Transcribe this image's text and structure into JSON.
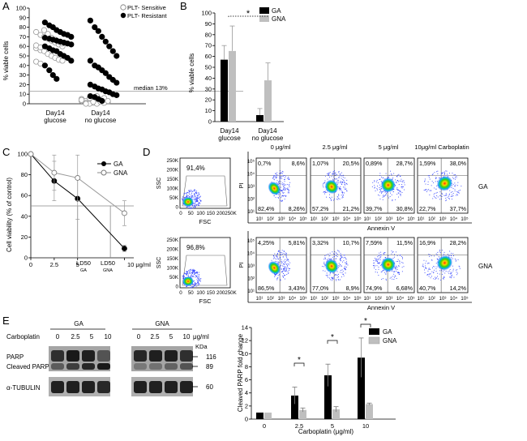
{
  "figure": {
    "labels": {
      "A": "A",
      "B": "B",
      "C": "C",
      "D": "D",
      "E": "E"
    }
  },
  "panelA": {
    "ylabel": "% viable cells",
    "yticks": [
      "0",
      "10",
      "20",
      "30",
      "40",
      "50",
      "60",
      "70",
      "80",
      "90",
      "100"
    ],
    "xcats": [
      [
        "Day14",
        "glucose"
      ],
      [
        "Day14",
        "no glucose"
      ]
    ],
    "legend": {
      "sensitive": "PLT- Sensitive",
      "resistant": "PLT- Resistant"
    },
    "median_label": "median 13%"
  },
  "panelB": {
    "ylabel": "% viable cells",
    "yticks": [
      "0",
      "10",
      "20",
      "30",
      "40",
      "50",
      "60",
      "70",
      "80",
      "90",
      "100"
    ],
    "xcats": [
      [
        "Day14",
        "glucose"
      ],
      [
        "Day14",
        "no glucose"
      ]
    ],
    "legend": {
      "ga": "GA",
      "gna": "GNA"
    },
    "significance": "*",
    "colors": {
      "ga": "#000000",
      "gna": "#bfbfbf"
    }
  },
  "panelC": {
    "ylabel": "Cell viability (% of control)",
    "yticks": [
      "0",
      "20",
      "40",
      "60",
      "80",
      "100"
    ],
    "xticks": [
      "0",
      "2.5",
      "5",
      "10 μg/ml"
    ],
    "ld_ga": [
      "LD50",
      "GA"
    ],
    "ld_gna": [
      "LD50",
      "GNA"
    ],
    "legend": {
      "ga": "GA",
      "gna": "GNA"
    }
  },
  "panelD": {
    "conditions": [
      "0 μg/ml",
      "2.5 μg/ml",
      "5 μg/ml",
      "10μg/ml Carboplatin"
    ],
    "rows": [
      {
        "name": "GA",
        "scatter_pct": "91,4%",
        "quads": [
          {
            "ul": "0,7%",
            "ur": "8,6%",
            "ll": "82,4%",
            "lr": "8,26%"
          },
          {
            "ul": "1,07%",
            "ur": "20,5%",
            "ll": "57,2%",
            "lr": "21,2%"
          },
          {
            "ul": "0,89%",
            "ur": "28,7%",
            "ll": "39,7%",
            "lr": "30,8%"
          },
          {
            "ul": "1,59%",
            "ur": "38,0%",
            "ll": "22,7%",
            "lr": "37,7%"
          }
        ]
      },
      {
        "name": "GNA",
        "scatter_pct": "96,8%",
        "quads": [
          {
            "ul": "4,25%",
            "ur": "5,81%",
            "ll": "86,5%",
            "lr": "3,43%"
          },
          {
            "ul": "3,32%",
            "ur": "10,7%",
            "ll": "77,0%",
            "lr": "8,9%"
          },
          {
            "ul": "7,59%",
            "ur": "11,5%",
            "ll": "74,9%",
            "lr": "6,68%"
          },
          {
            "ul": "16,9%",
            "ur": "28,2%",
            "ll": "40,7%",
            "lr": "14,2%"
          }
        ]
      }
    ],
    "ssc": "SSC",
    "fsc": "FSC",
    "pi": "PI",
    "annexin": "Annexin V",
    "scatter_yticks": [
      "250K",
      "200K",
      "150K",
      "100K",
      "50K",
      "0"
    ],
    "scatter_xticks": [
      "0",
      "50",
      "100",
      "150",
      "200",
      "250K"
    ],
    "log_yticks": [
      "10⁵",
      "10⁴",
      "10³",
      "10²",
      "10¹"
    ],
    "log_xticks": [
      "10¹",
      "10²",
      "10³",
      "10⁴",
      "10⁵"
    ]
  },
  "panelE": {
    "groups": [
      "GA",
      "GNA"
    ],
    "carboplatin_label": "Carboplatin",
    "doses_ga": [
      "0",
      "2.5",
      "5",
      "10"
    ],
    "doses_gna": [
      "0",
      "2.5",
      "5",
      "10",
      "μg/ml"
    ],
    "row_labels": [
      "PARP",
      "Cleaved PARP",
      "α-TUBULIN"
    ],
    "kda_label": "KDa",
    "markers": [
      "116",
      "89",
      "60"
    ],
    "chart": {
      "ylabel": "Cleaved PARP fold change",
      "xlabel": "Carboplatin (μg/ml)",
      "yticks": [
        "0",
        "2",
        "4",
        "6",
        "8",
        "10",
        "12",
        "14"
      ],
      "legend": {
        "ga": "GA",
        "gna": "GNA"
      },
      "stars": [
        "*",
        "*",
        "*"
      ]
    }
  },
  "chart_data": [
    {
      "type": "scatter",
      "panel": "A",
      "ylabel": "% viable cells",
      "ylim": [
        0,
        100
      ],
      "categories": [
        "Day14 glucose",
        "Day14 no glucose"
      ],
      "series": [
        {
          "name": "PLT- Sensitive",
          "values": [
            [
              75,
              72,
              70,
              68,
              66,
              64,
              62,
              60,
              58,
              56,
              55,
              52,
              50,
              48,
              46,
              45,
              44,
              42,
              77,
              73,
              69,
              67,
              65,
              63,
              61,
              59
            ],
            [
              5,
              3,
              2,
              1,
              0,
              4,
              6,
              2,
              3,
              1,
              0,
              5,
              8,
              2,
              1,
              3,
              4,
              0,
              6,
              2
            ]
          ]
        },
        {
          "name": "PLT- Resistant",
          "values": [
            [
              85,
              82,
              80,
              77,
              75,
              73,
              72,
              70,
              69,
              68,
              67,
              66,
              65,
              64,
              63,
              62,
              60,
              58,
              56,
              55,
              52,
              50,
              48,
              45,
              40,
              35,
              30,
              26
            ],
            [
              87,
              80,
              76,
              70,
              65,
              60,
              55,
              50,
              45,
              40,
              38,
              35,
              32,
              28,
              25,
              22,
              20,
              18,
              16,
              15,
              13,
              12,
              10,
              9,
              8,
              7,
              5,
              3
            ]
          ]
        }
      ],
      "median_line": 13
    },
    {
      "type": "bar",
      "panel": "B",
      "categories": [
        "Day14 glucose",
        "Day14 no glucose"
      ],
      "series": [
        {
          "name": "GA",
          "values": [
            57,
            6
          ],
          "errors": [
            13,
            6
          ]
        },
        {
          "name": "GNA",
          "values": [
            65,
            38
          ],
          "errors": [
            23,
            16
          ]
        }
      ],
      "ylabel": "% viable cells",
      "ylim": [
        0,
        100
      ]
    },
    {
      "type": "line",
      "panel": "C",
      "x": [
        0,
        2.5,
        5,
        10
      ],
      "series": [
        {
          "name": "GA",
          "values": [
            100,
            74,
            57,
            9
          ],
          "errors": [
            0,
            19,
            20,
            3
          ]
        },
        {
          "name": "GNA",
          "values": [
            100,
            82,
            77,
            43
          ],
          "errors": [
            0,
            17,
            22,
            12
          ]
        }
      ],
      "ylabel": "Cell viability (% of control)",
      "ylim": [
        0,
        100
      ],
      "xlim": [
        0,
        11
      ],
      "reference_line": 50
    },
    {
      "type": "bar",
      "panel": "E",
      "categories": [
        "0",
        "2.5",
        "5",
        "10"
      ],
      "series": [
        {
          "name": "GA",
          "values": [
            1,
            3.6,
            6.7,
            9.4
          ],
          "errors": [
            0,
            1.3,
            1.7,
            3
          ]
        },
        {
          "name": "GNA",
          "values": [
            1,
            1.4,
            1.5,
            2.3
          ],
          "errors": [
            0,
            0.3,
            0.4,
            0.15
          ]
        }
      ],
      "xlabel": "Carboplatin (μg/ml)",
      "ylabel": "Cleaved PARP fold change",
      "ylim": [
        0,
        14
      ]
    }
  ]
}
